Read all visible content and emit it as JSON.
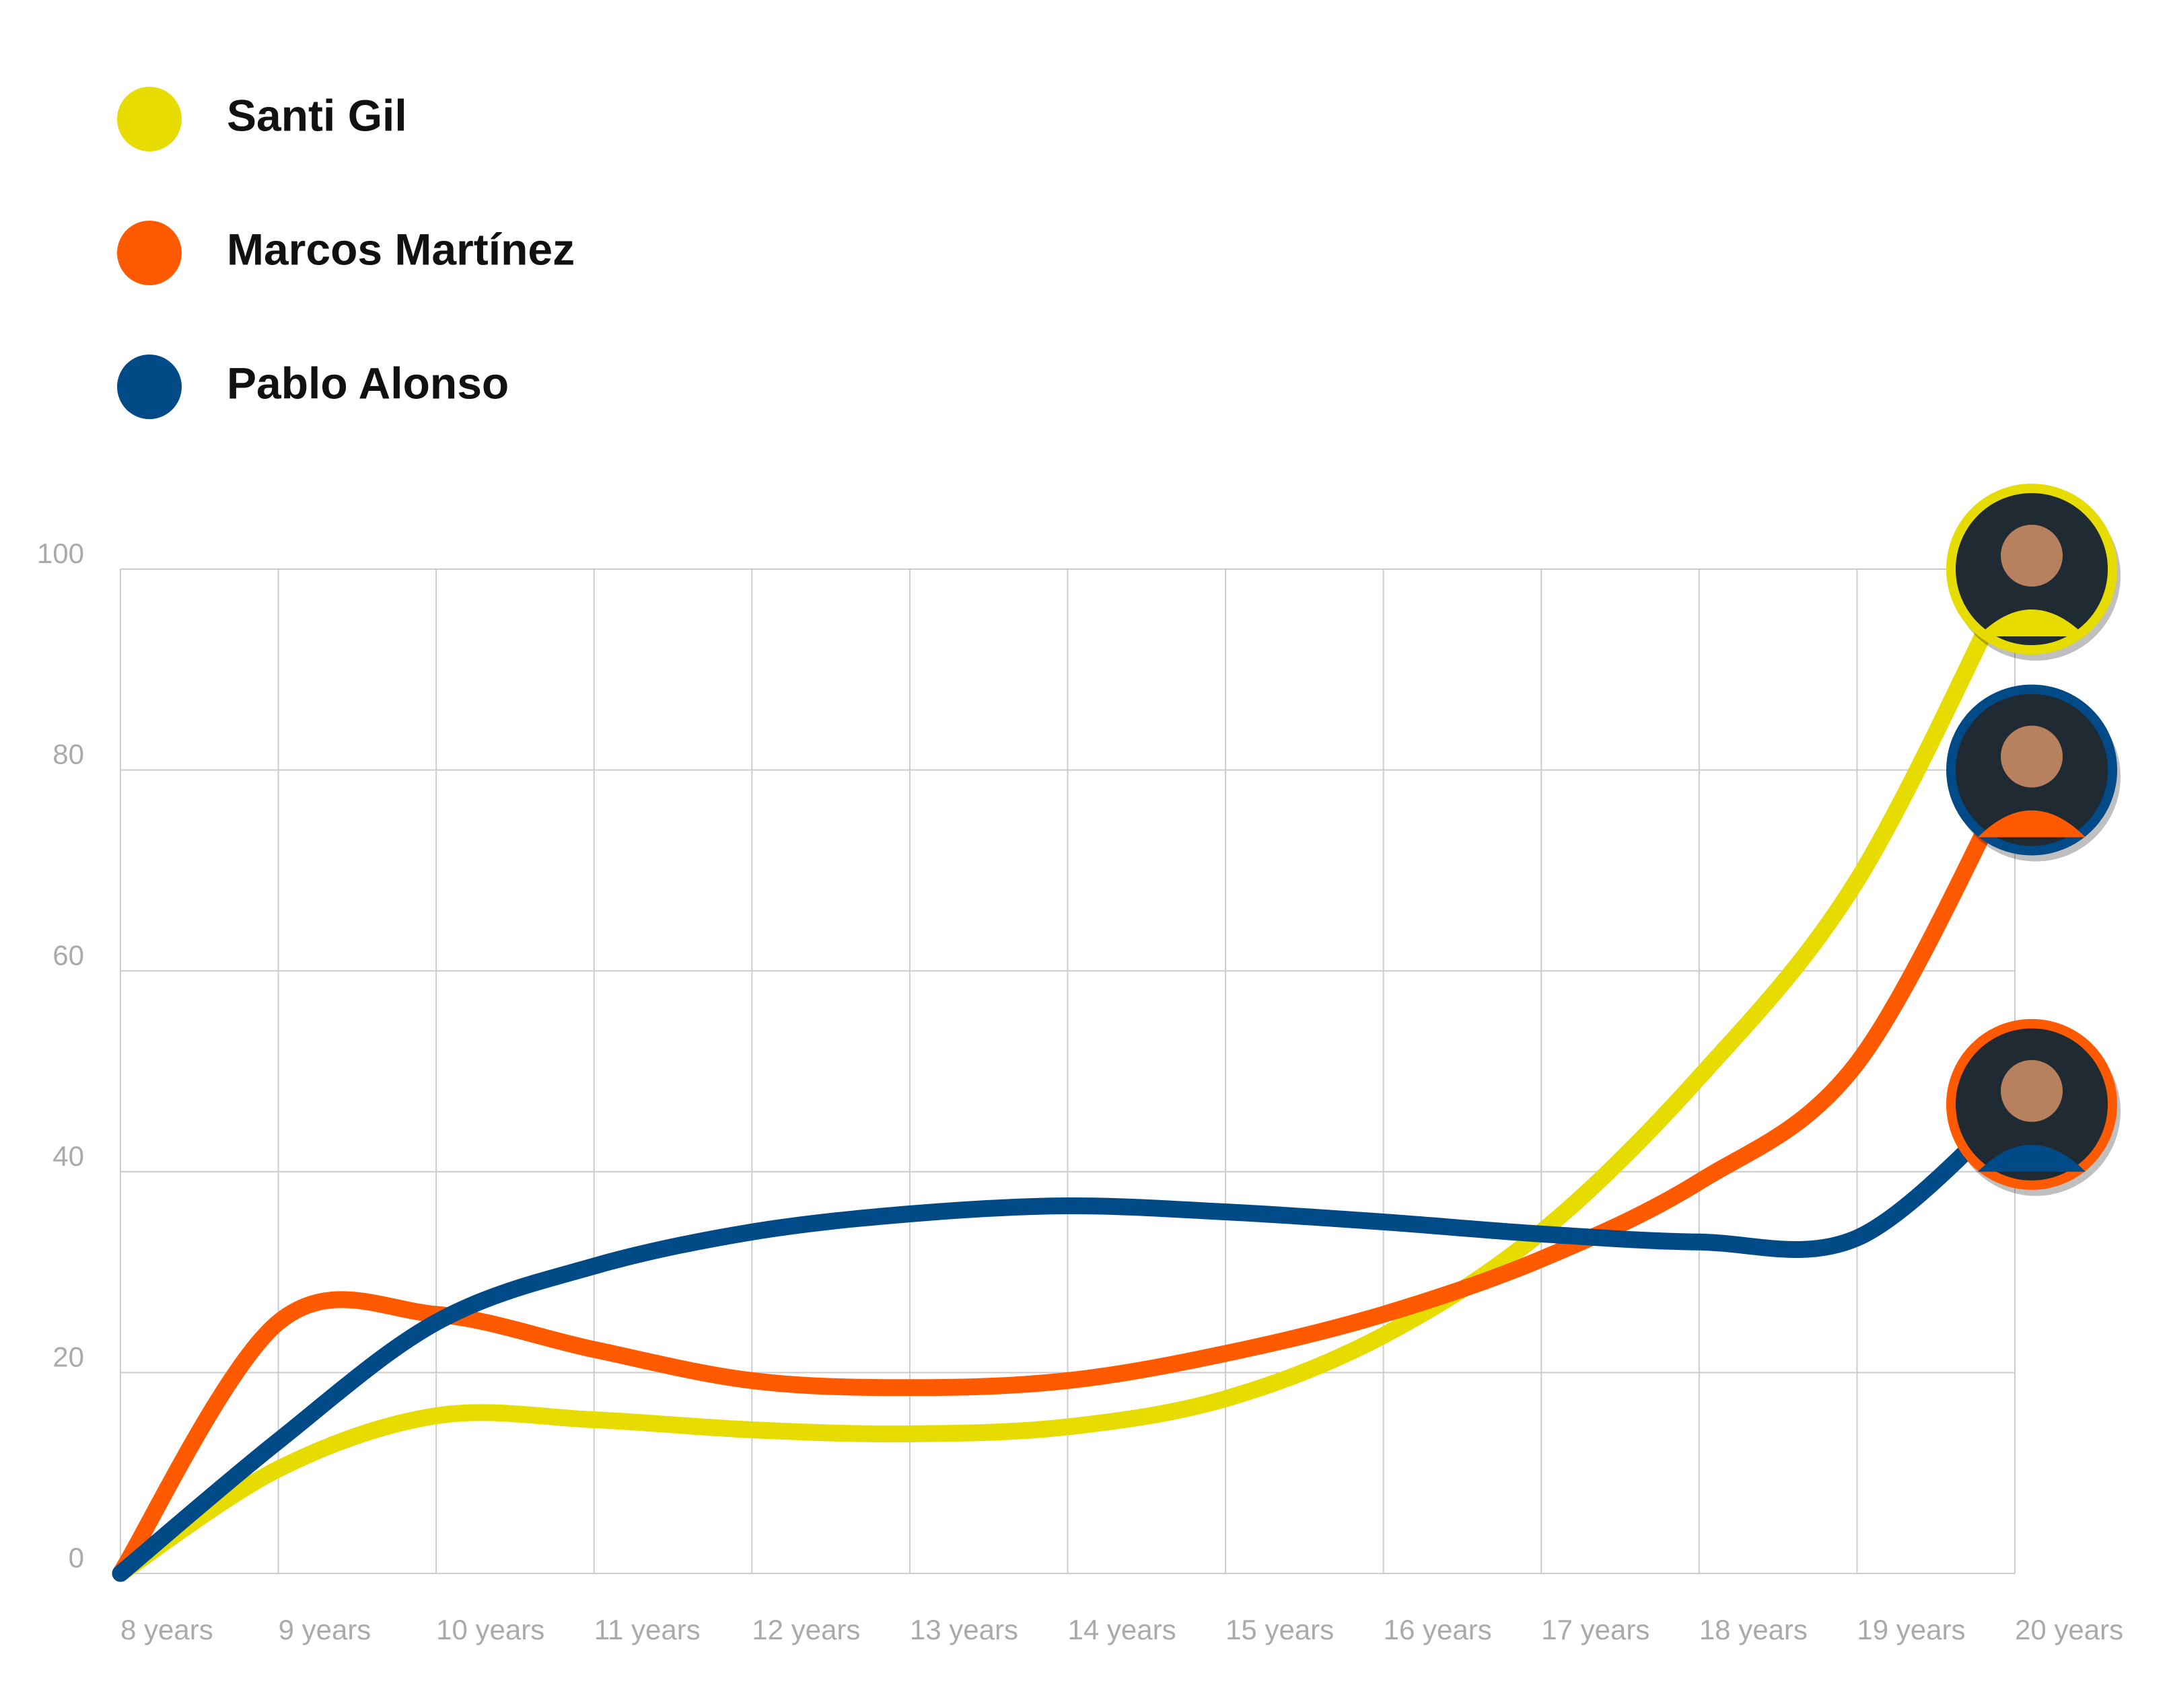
{
  "chart_data": {
    "type": "line",
    "categories": [
      "8 years",
      "9 years",
      "10 years",
      "11 years",
      "12 years",
      "13 years",
      "14 years",
      "15 years",
      "16 years",
      "17 years",
      "18 years",
      "19 years",
      "20 years"
    ],
    "series": [
      {
        "name": "Santi Gil",
        "color": "#e6dc00",
        "values": [
          0,
          10.4,
          15.7,
          15.3,
          14.3,
          13.9,
          14.6,
          17.4,
          23.7,
          34,
          49.4,
          69,
          100
        ]
      },
      {
        "name": "Marcos Martínez",
        "color": "#ff5a00",
        "values": [
          0,
          25,
          25.8,
          22.3,
          19.2,
          18.5,
          19.2,
          21.9,
          25.8,
          31.3,
          39,
          50.8,
          80
        ]
      },
      {
        "name": "Pablo Alonso",
        "color": "#004a87",
        "values": [
          0,
          13.2,
          25,
          30.6,
          34,
          35.8,
          36.6,
          36,
          35,
          33.8,
          33,
          33.4,
          46.7
        ]
      }
    ],
    "ylim": [
      0,
      100
    ],
    "yticks": [
      0,
      20,
      40,
      60,
      80,
      100
    ],
    "grid": true
  }
}
